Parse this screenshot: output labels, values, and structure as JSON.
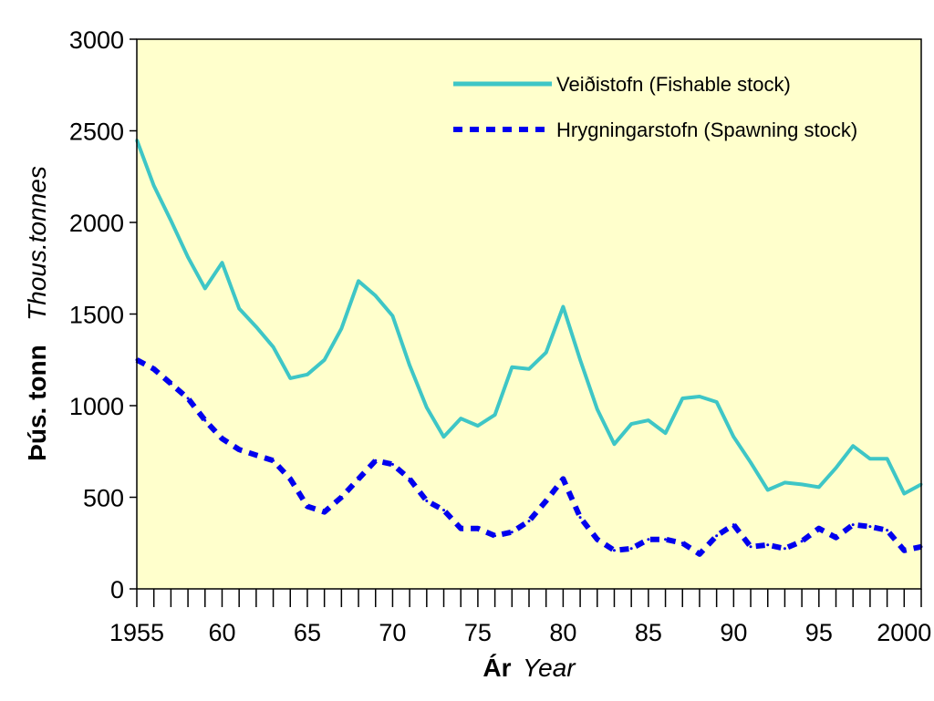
{
  "chart_data": {
    "type": "line",
    "title": "",
    "xlabel": {
      "bold": "Ár",
      "italic": "Year"
    },
    "ylabel": {
      "bold": "Þús. tonn",
      "italic": "Thous.tonnes"
    },
    "xlim": [
      1955,
      2001
    ],
    "ylim": [
      0,
      3000
    ],
    "y_ticks": [
      0,
      500,
      1000,
      1500,
      2000,
      2500,
      3000
    ],
    "x_tick_labels": [
      {
        "x": 1955,
        "label": "1955"
      },
      {
        "x": 1960,
        "label": "60"
      },
      {
        "x": 1965,
        "label": "65"
      },
      {
        "x": 1970,
        "label": "70"
      },
      {
        "x": 1975,
        "label": "75"
      },
      {
        "x": 1980,
        "label": "80"
      },
      {
        "x": 1985,
        "label": "85"
      },
      {
        "x": 1990,
        "label": "90"
      },
      {
        "x": 1995,
        "label": "95"
      },
      {
        "x": 2000,
        "label": "2000"
      }
    ],
    "grid": false,
    "legend_position": "top-right",
    "plot_background": "#ffffcc",
    "x": [
      1955,
      1956,
      1957,
      1958,
      1959,
      1960,
      1961,
      1962,
      1963,
      1964,
      1965,
      1966,
      1967,
      1968,
      1969,
      1970,
      1971,
      1972,
      1973,
      1974,
      1975,
      1976,
      1977,
      1978,
      1979,
      1980,
      1981,
      1982,
      1983,
      1984,
      1985,
      1986,
      1987,
      1988,
      1989,
      1990,
      1991,
      1992,
      1993,
      1994,
      1995,
      1996,
      1997,
      1998,
      1999,
      2000,
      2001
    ],
    "series": [
      {
        "name": "Veiðistofn (Fishable stock)",
        "style": "solid",
        "color": "#3ec6c6",
        "values": [
          2450,
          2200,
          2010,
          1810,
          1640,
          1780,
          1530,
          1430,
          1320,
          1150,
          1170,
          1250,
          1420,
          1680,
          1600,
          1490,
          1220,
          990,
          830,
          930,
          890,
          950,
          1210,
          1200,
          1290,
          1540,
          1250,
          980,
          790,
          900,
          920,
          850,
          1040,
          1050,
          1020,
          830,
          690,
          540,
          580,
          570,
          555,
          660,
          780,
          710,
          710,
          520,
          570
        ]
      },
      {
        "name": "Hrygningarstofn (Spawning stock)",
        "style": "dashed",
        "color": "#0000ee",
        "values": [
          1250,
          1200,
          1120,
          1040,
          920,
          820,
          760,
          730,
          700,
          600,
          450,
          420,
          500,
          600,
          700,
          680,
          600,
          480,
          430,
          330,
          330,
          290,
          310,
          370,
          480,
          600,
          390,
          270,
          210,
          220,
          270,
          270,
          250,
          190,
          290,
          350,
          230,
          240,
          220,
          260,
          330,
          280,
          350,
          340,
          320,
          210,
          230
        ]
      }
    ]
  }
}
